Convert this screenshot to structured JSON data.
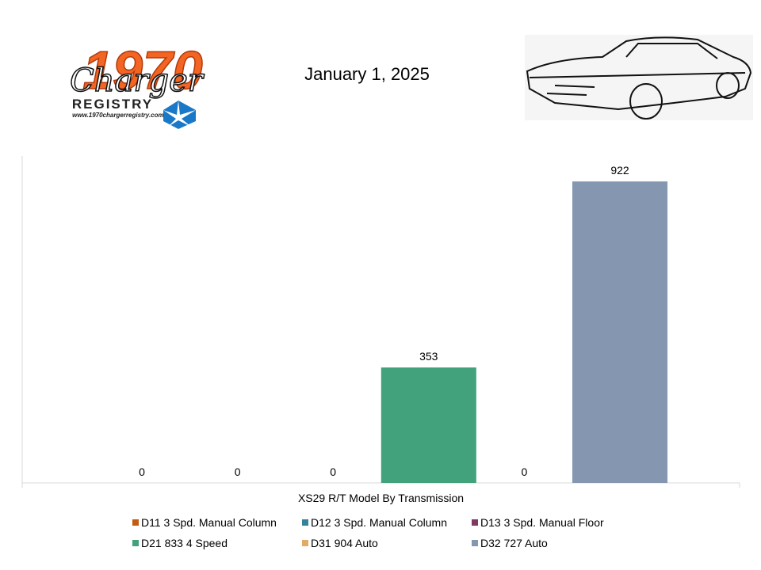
{
  "logo": {
    "number": "1970",
    "script": "Charger",
    "word": "REGISTRY",
    "url": "www.1970chargerregistry.com/"
  },
  "chart_data": {
    "type": "bar",
    "title": "January 1, 2025",
    "categories": [
      "XS29 R/T Model By Transmission"
    ],
    "series": [
      {
        "name": "D11 3 Spd. Manual Column",
        "color": "#c55a11",
        "values": [
          0
        ]
      },
      {
        "name": "D12 3 Spd. Manual Column",
        "color": "#31849b",
        "values": [
          0
        ]
      },
      {
        "name": "D13 3 Spd. Manual Floor",
        "color": "#7f3b5f",
        "values": [
          0
        ]
      },
      {
        "name": "D21 833 4 Speed",
        "color": "#41a27b",
        "values": [
          353
        ]
      },
      {
        "name": "D31 904 Auto",
        "color": "#e2aa66",
        "values": [
          0
        ]
      },
      {
        "name": "D32 727 Auto",
        "color": "#8496b0",
        "values": [
          922
        ]
      }
    ],
    "ylim": [
      0,
      1000
    ],
    "legend": "bottom"
  }
}
